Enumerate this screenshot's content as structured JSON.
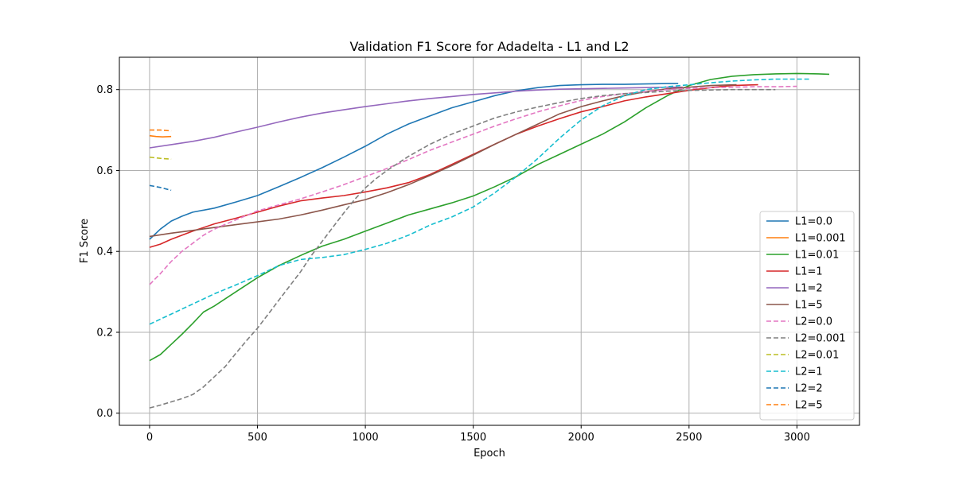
{
  "chart_data": {
    "type": "line",
    "title": "Validation F1 Score for Adadelta - L1 and L2",
    "xlabel": "Epoch",
    "ylabel": "F1 Score",
    "xlim": [
      -140,
      3290
    ],
    "ylim": [
      -0.03,
      0.88
    ],
    "xticks": [
      0,
      500,
      1000,
      1500,
      2000,
      2500,
      3000
    ],
    "xtick_labels": [
      "0",
      "500",
      "1000",
      "1500",
      "2000",
      "2500",
      "3000"
    ],
    "yticks": [
      0.0,
      0.2,
      0.4,
      0.6,
      0.8
    ],
    "ytick_labels": [
      "0.0",
      "0.2",
      "0.4",
      "0.6",
      "0.8"
    ],
    "grid": true,
    "legend_position": "lower-right",
    "series": [
      {
        "name": "L1=0.0",
        "color": "#1f77b4",
        "dash": "solid",
        "x": [
          0,
          50,
          100,
          150,
          200,
          300,
          400,
          500,
          600,
          700,
          800,
          900,
          1000,
          1100,
          1200,
          1300,
          1400,
          1500,
          1600,
          1700,
          1800,
          1900,
          2000,
          2100,
          2200,
          2300,
          2400,
          2450
        ],
        "y": [
          0.43,
          0.455,
          0.475,
          0.487,
          0.497,
          0.507,
          0.522,
          0.538,
          0.56,
          0.583,
          0.607,
          0.633,
          0.66,
          0.69,
          0.715,
          0.735,
          0.755,
          0.77,
          0.785,
          0.797,
          0.805,
          0.81,
          0.812,
          0.813,
          0.813,
          0.814,
          0.815,
          0.815
        ]
      },
      {
        "name": "L1=0.001",
        "color": "#ff7f0e",
        "dash": "solid",
        "x": [
          0,
          30,
          60,
          100
        ],
        "y": [
          0.686,
          0.684,
          0.683,
          0.684
        ]
      },
      {
        "name": "L1=0.01",
        "color": "#2ca02c",
        "dash": "solid",
        "x": [
          0,
          50,
          100,
          150,
          200,
          250,
          300,
          400,
          500,
          600,
          700,
          800,
          900,
          1000,
          1100,
          1200,
          1300,
          1400,
          1500,
          1600,
          1700,
          1800,
          1900,
          2000,
          2100,
          2200,
          2300,
          2400,
          2500,
          2600,
          2700,
          2800,
          2900,
          3000,
          3100,
          3150
        ],
        "y": [
          0.13,
          0.145,
          0.17,
          0.195,
          0.222,
          0.25,
          0.265,
          0.3,
          0.335,
          0.365,
          0.39,
          0.413,
          0.43,
          0.45,
          0.47,
          0.49,
          0.505,
          0.52,
          0.537,
          0.56,
          0.585,
          0.615,
          0.64,
          0.665,
          0.69,
          0.72,
          0.755,
          0.785,
          0.81,
          0.825,
          0.833,
          0.837,
          0.839,
          0.84,
          0.839,
          0.838
        ]
      },
      {
        "name": "L1=1",
        "color": "#d62728",
        "dash": "solid",
        "x": [
          0,
          50,
          100,
          150,
          200,
          300,
          400,
          500,
          600,
          700,
          800,
          900,
          1000,
          1100,
          1200,
          1300,
          1400,
          1500,
          1600,
          1700,
          1800,
          1900,
          2000,
          2100,
          2200,
          2300,
          2400,
          2500,
          2600,
          2700,
          2820
        ],
        "y": [
          0.41,
          0.418,
          0.43,
          0.44,
          0.45,
          0.468,
          0.482,
          0.497,
          0.512,
          0.525,
          0.532,
          0.538,
          0.547,
          0.557,
          0.57,
          0.59,
          0.615,
          0.64,
          0.665,
          0.69,
          0.71,
          0.728,
          0.745,
          0.758,
          0.772,
          0.782,
          0.79,
          0.798,
          0.805,
          0.81,
          0.812
        ]
      },
      {
        "name": "L1=2",
        "color": "#9467bd",
        "dash": "solid",
        "x": [
          0,
          100,
          200,
          300,
          400,
          500,
          600,
          700,
          800,
          900,
          1000,
          1100,
          1200,
          1300,
          1400,
          1500,
          1600,
          1700,
          1800,
          1900,
          2000,
          2100,
          2200,
          2300,
          2400,
          2470
        ],
        "y": [
          0.656,
          0.664,
          0.672,
          0.682,
          0.695,
          0.707,
          0.72,
          0.732,
          0.742,
          0.75,
          0.758,
          0.765,
          0.772,
          0.778,
          0.783,
          0.788,
          0.792,
          0.796,
          0.799,
          0.801,
          0.802,
          0.803,
          0.804,
          0.805,
          0.806,
          0.806
        ]
      },
      {
        "name": "L1=5",
        "color": "#8c564b",
        "dash": "solid",
        "x": [
          0,
          100,
          200,
          300,
          400,
          500,
          600,
          700,
          800,
          900,
          1000,
          1100,
          1200,
          1300,
          1400,
          1500,
          1600,
          1700,
          1800,
          1900,
          2000,
          2100,
          2200,
          2300,
          2400,
          2500,
          2600,
          2720
        ],
        "y": [
          0.437,
          0.445,
          0.452,
          0.459,
          0.466,
          0.473,
          0.48,
          0.49,
          0.502,
          0.515,
          0.528,
          0.545,
          0.565,
          0.588,
          0.612,
          0.638,
          0.665,
          0.69,
          0.715,
          0.74,
          0.758,
          0.772,
          0.785,
          0.795,
          0.802,
          0.806,
          0.81,
          0.812
        ]
      },
      {
        "name": "L2=0.0",
        "color": "#e377c2",
        "dash": "dashed",
        "x": [
          0,
          50,
          100,
          150,
          200,
          250,
          300,
          400,
          500,
          600,
          700,
          800,
          900,
          1000,
          1100,
          1200,
          1300,
          1400,
          1500,
          1600,
          1700,
          1800,
          1900,
          2000,
          2100,
          2200,
          2300,
          2400,
          2500,
          2600,
          2700,
          2800,
          2900,
          3000
        ],
        "y": [
          0.318,
          0.345,
          0.375,
          0.4,
          0.42,
          0.44,
          0.455,
          0.478,
          0.5,
          0.515,
          0.53,
          0.547,
          0.565,
          0.585,
          0.605,
          0.627,
          0.65,
          0.67,
          0.69,
          0.71,
          0.728,
          0.745,
          0.76,
          0.773,
          0.783,
          0.79,
          0.795,
          0.8,
          0.803,
          0.805,
          0.806,
          0.807,
          0.807,
          0.808
        ]
      },
      {
        "name": "L2=0.001",
        "color": "#7f7f7f",
        "dash": "dashed",
        "x": [
          0,
          50,
          100,
          150,
          200,
          250,
          300,
          350,
          400,
          450,
          500,
          550,
          600,
          650,
          700,
          750,
          800,
          850,
          900,
          950,
          1000,
          1050,
          1100,
          1200,
          1300,
          1400,
          1500,
          1600,
          1700,
          1800,
          1900,
          2000,
          2100,
          2200,
          2300,
          2400,
          2500,
          2600,
          2700,
          2800,
          2900
        ],
        "y": [
          0.013,
          0.02,
          0.028,
          0.036,
          0.046,
          0.065,
          0.09,
          0.115,
          0.148,
          0.18,
          0.21,
          0.245,
          0.28,
          0.315,
          0.35,
          0.39,
          0.425,
          0.46,
          0.495,
          0.528,
          0.557,
          0.58,
          0.6,
          0.635,
          0.665,
          0.69,
          0.71,
          0.73,
          0.745,
          0.757,
          0.768,
          0.778,
          0.785,
          0.79,
          0.793,
          0.796,
          0.798,
          0.799,
          0.8,
          0.8,
          0.8
        ]
      },
      {
        "name": "L2=0.01",
        "color": "#bcbd22",
        "dash": "dashed",
        "x": [
          0,
          50,
          100
        ],
        "y": [
          0.633,
          0.63,
          0.628
        ]
      },
      {
        "name": "L2=1",
        "color": "#17becf",
        "dash": "dashed",
        "x": [
          0,
          100,
          200,
          300,
          400,
          500,
          600,
          700,
          800,
          900,
          1000,
          1100,
          1200,
          1300,
          1400,
          1500,
          1600,
          1700,
          1800,
          1900,
          2000,
          2100,
          2200,
          2300,
          2400,
          2500,
          2600,
          2700,
          2800,
          2900,
          3000,
          3060
        ],
        "y": [
          0.22,
          0.245,
          0.27,
          0.295,
          0.317,
          0.34,
          0.365,
          0.38,
          0.385,
          0.392,
          0.405,
          0.42,
          0.44,
          0.465,
          0.485,
          0.51,
          0.545,
          0.585,
          0.63,
          0.68,
          0.725,
          0.76,
          0.785,
          0.8,
          0.807,
          0.812,
          0.817,
          0.821,
          0.824,
          0.826,
          0.826,
          0.826
        ]
      },
      {
        "name": "L2=2",
        "color": "#1f77b4",
        "dash": "dashed",
        "x": [
          0,
          50,
          100
        ],
        "y": [
          0.563,
          0.558,
          0.551
        ]
      },
      {
        "name": "L2=5",
        "color": "#ff7f0e",
        "dash": "dashed",
        "x": [
          0,
          50,
          100
        ],
        "y": [
          0.7,
          0.7,
          0.698
        ]
      }
    ]
  }
}
